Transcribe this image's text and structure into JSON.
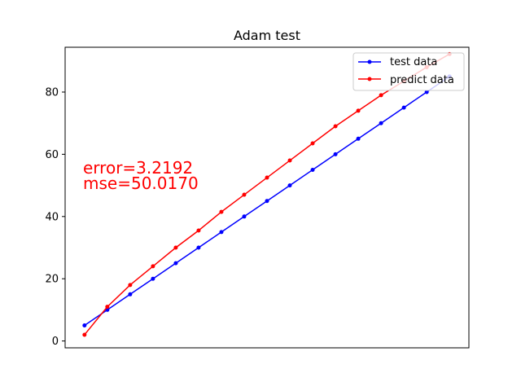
{
  "chart_data": {
    "type": "line",
    "title": "Adam test",
    "xlabel": "",
    "ylabel": "",
    "ylim": [
      -2.2,
      94.4
    ],
    "xlim": [
      -0.85,
      16.85
    ],
    "yticks": [
      0,
      20,
      40,
      60,
      80
    ],
    "grid": false,
    "legend_position": "upper right",
    "x": [
      0,
      1,
      2,
      3,
      4,
      5,
      6,
      7,
      8,
      9,
      10,
      11,
      12,
      13,
      14,
      15,
      16
    ],
    "series": [
      {
        "name": "test data",
        "color": "#0000ff",
        "marker": "point",
        "values": [
          5,
          10,
          15,
          20,
          25,
          30,
          35,
          40,
          45,
          50,
          55,
          60,
          65,
          70,
          75,
          80,
          85
        ]
      },
      {
        "name": "predict data",
        "color": "#ff0000",
        "marker": "point",
        "values": [
          2,
          11,
          18,
          24,
          30,
          35.5,
          41.5,
          47,
          52.5,
          58,
          63.5,
          69,
          74,
          79,
          83.5,
          88,
          92.2
        ]
      }
    ],
    "annotations": [
      {
        "text": "error=3.2192",
        "color": "#ff0000"
      },
      {
        "text": "mse=50.0170",
        "color": "#ff0000"
      }
    ]
  }
}
